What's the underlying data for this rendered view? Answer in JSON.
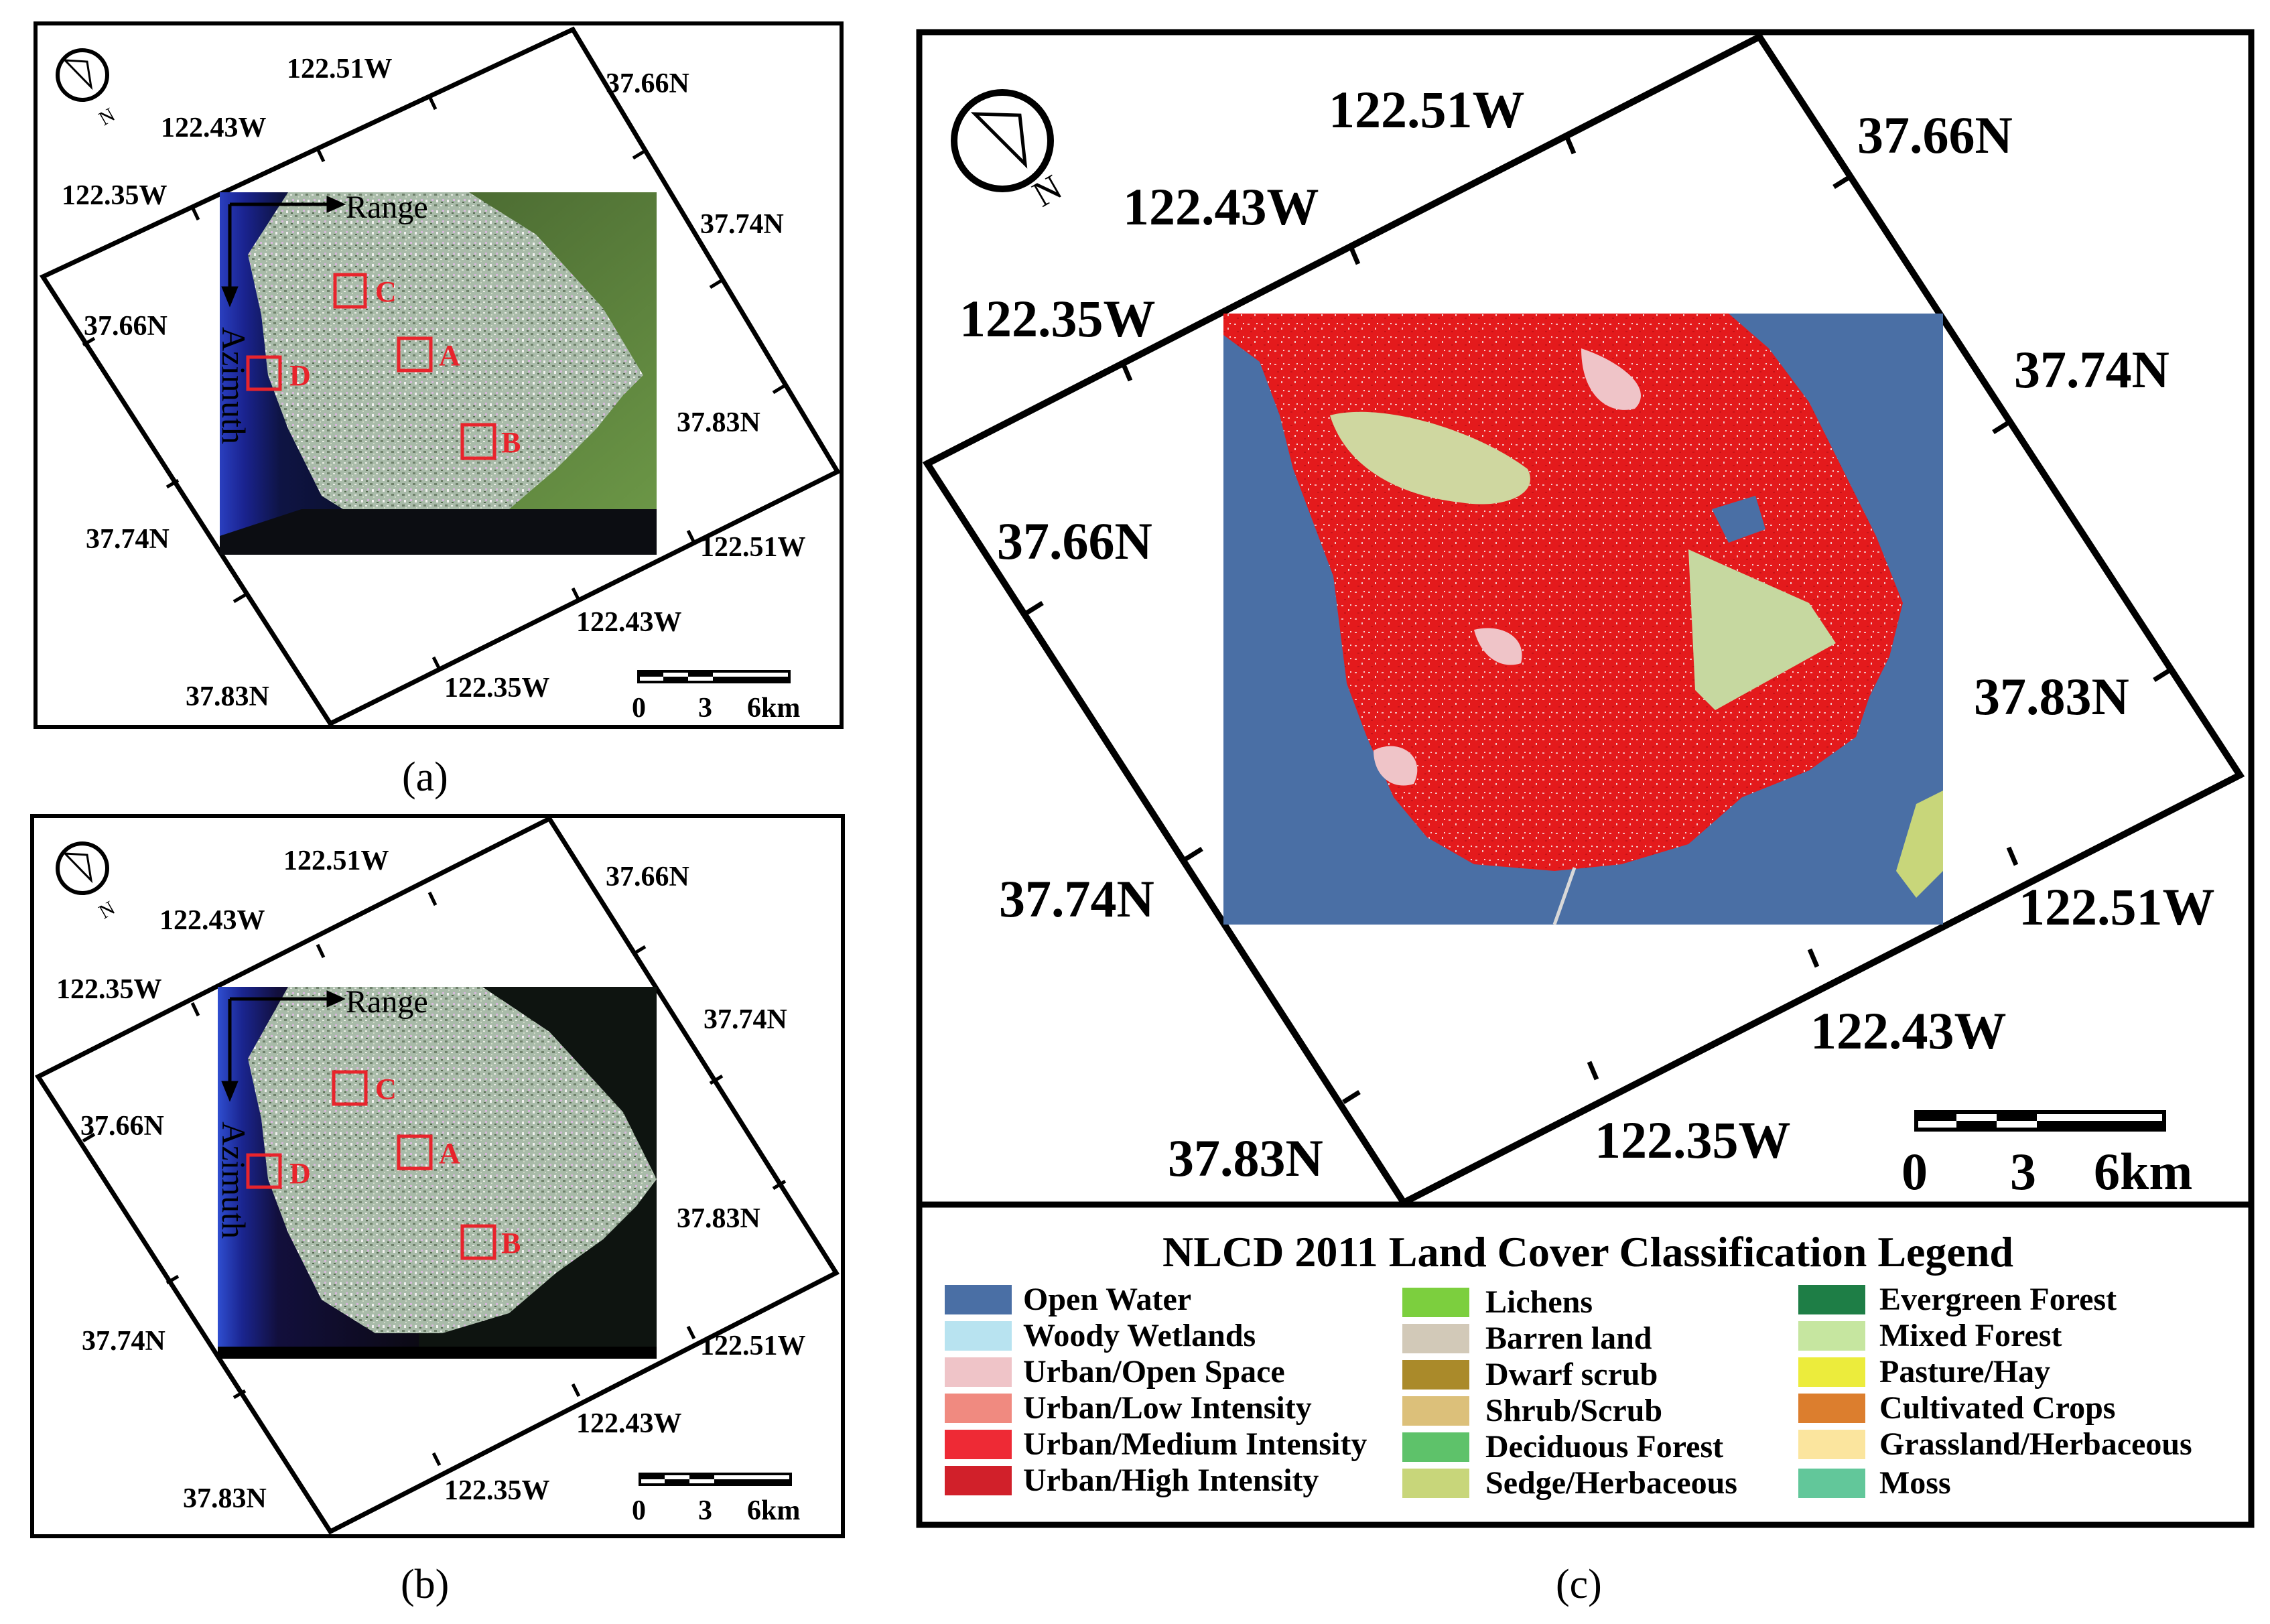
{
  "panel_a": {
    "caption": "(a)",
    "north": "N",
    "lon_top": [
      "122.51W",
      "122.43W",
      "122.35W"
    ],
    "lat_right": [
      "37.66N",
      "37.74N",
      "37.83N"
    ],
    "lat_left": [
      "37.66N",
      "37.74N",
      "37.83N"
    ],
    "lon_bottom": [
      "122.51W",
      "122.43W",
      "122.35W"
    ],
    "range_label": "Range",
    "azimuth_label": "Azimuth",
    "boxes": [
      "A",
      "B",
      "C",
      "D"
    ],
    "scale": [
      "0",
      "3",
      "6km"
    ]
  },
  "panel_b": {
    "caption": "(b)",
    "north": "N",
    "lon_top": [
      "122.51W",
      "122.43W",
      "122.35W"
    ],
    "lat_right": [
      "37.66N",
      "37.74N",
      "37.83N"
    ],
    "lat_left": [
      "37.66N",
      "37.74N",
      "37.83N"
    ],
    "lon_bottom": [
      "122.51W",
      "122.43W",
      "122.35W"
    ],
    "range_label": "Range",
    "azimuth_label": "Azimuth",
    "boxes": [
      "A",
      "B",
      "C",
      "D"
    ],
    "scale": [
      "0",
      "3",
      "6km"
    ]
  },
  "panel_c": {
    "caption": "(c)",
    "north": "N",
    "lon_top": [
      "122.51W",
      "122.43W",
      "122.35W"
    ],
    "lat_right": [
      "37.66N",
      "37.74N",
      "37.83N"
    ],
    "lat_left": [
      "37.66N",
      "37.74N",
      "37.83N"
    ],
    "lon_bottom": [
      "122.51W",
      "122.43W",
      "122.35W"
    ],
    "scale": [
      "0",
      "3",
      "6km"
    ]
  },
  "legend": {
    "title": "NLCD 2011 Land Cover Classification Legend",
    "col1": [
      {
        "label": "Open Water",
        "color": "#4a6fa5"
      },
      {
        "label": "Woody Wetlands",
        "color": "#b8e3f0"
      },
      {
        "label": "Urban/Open Space",
        "color": "#efc4c8"
      },
      {
        "label": "Urban/Low Intensity",
        "color": "#f08a80"
      },
      {
        "label": "Urban/Medium Intensity",
        "color": "#ee2a35"
      },
      {
        "label": "Urban/High Intensity",
        "color": "#d1202a"
      }
    ],
    "col2": [
      {
        "label": "Lichens",
        "color": "#7ccf3e"
      },
      {
        "label": "Barren land",
        "color": "#d2c9b8"
      },
      {
        "label": "Dwarf scrub",
        "color": "#aa8a2a"
      },
      {
        "label": "Shrub/Scrub",
        "color": "#dcc07a"
      },
      {
        "label": "Deciduous Forest",
        "color": "#5ec26a"
      },
      {
        "label": "Sedge/Herbaceous",
        "color": "#c8d67a"
      }
    ],
    "col3": [
      {
        "label": "Evergreen Forest",
        "color": "#1e7e46"
      },
      {
        "label": "Mixed Forest",
        "color": "#c6e6a0"
      },
      {
        "label": "Pasture/Hay",
        "color": "#ecec3c"
      },
      {
        "label": "Cultivated Crops",
        "color": "#dc7e2e"
      },
      {
        "label": "Grassland/Herbaceous",
        "color": "#fbe59e"
      },
      {
        "label": "Moss",
        "color": "#62c79a"
      }
    ]
  }
}
